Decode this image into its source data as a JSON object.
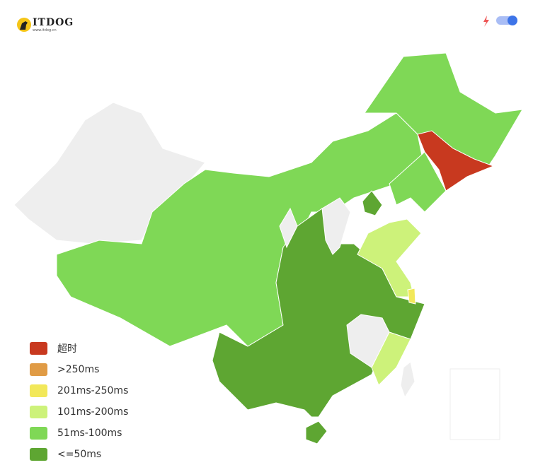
{
  "logo": {
    "name": "ITDOG",
    "url": "www.itdog.cn"
  },
  "legend": [
    {
      "label": "超时",
      "color": "#c8391f"
    },
    {
      "label": ">250ms",
      "color": "#e09b45"
    },
    {
      "label": "201ms-250ms",
      "color": "#f2e85a"
    },
    {
      "label": "101ms-200ms",
      "color": "#cdf27a"
    },
    {
      "label": "51ms-100ms",
      "color": "#7fd856"
    },
    {
      "label": "<=50ms",
      "color": "#5ea632"
    }
  ]
}
